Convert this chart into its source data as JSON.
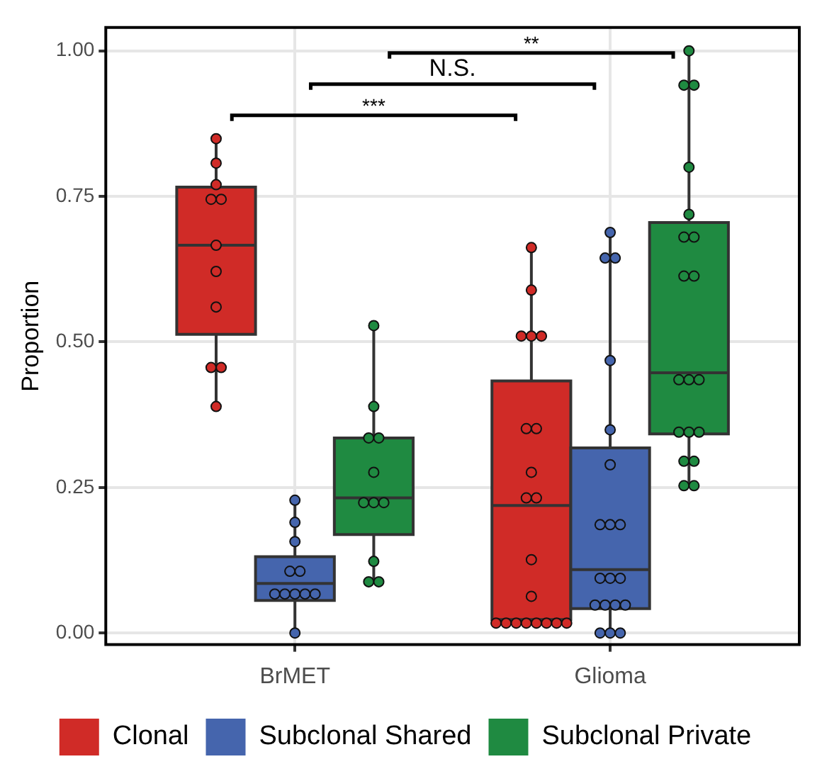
{
  "chart_data": {
    "type": "box",
    "ylabel": "Proportion",
    "categories": [
      "BrMET",
      "Glioma"
    ],
    "ylim": [
      -0.02,
      1.04
    ],
    "yticks": [
      {
        "value": 0,
        "label": "0.00"
      },
      {
        "value": 0.25,
        "label": "0.25"
      },
      {
        "value": 0.5,
        "label": "0.50"
      },
      {
        "value": 0.75,
        "label": "0.75"
      },
      {
        "value": 1,
        "label": "1.00"
      }
    ],
    "grid": true,
    "legend": "bottom",
    "marker": "circle",
    "annotations": [
      "***",
      "N.S.",
      "**"
    ],
    "series": [
      {
        "name": "Clonal",
        "color": "#d02b27",
        "boxes": [
          {
            "low": 0.39,
            "q1": 0.513,
            "median": 0.666,
            "q3": 0.766,
            "high": 0.85
          },
          {
            "low": 0.017,
            "q1": 0.023,
            "median": 0.219,
            "q3": 0.433,
            "high": 0.662
          }
        ]
      },
      {
        "name": "Subclonal Shared",
        "color": "#4565ad",
        "boxes": [
          {
            "low": 0,
            "q1": 0.056,
            "median": 0.085,
            "q3": 0.131,
            "high": 0.228
          },
          {
            "low": 0,
            "q1": 0.042,
            "median": 0.109,
            "q3": 0.318,
            "high": 0.688
          }
        ]
      },
      {
        "name": "Subclonal Private",
        "color": "#1f8a41",
        "boxes": [
          {
            "low": 0.088,
            "q1": 0.169,
            "median": 0.232,
            "q3": 0.335,
            "high": 0.528
          },
          {
            "low": 0.253,
            "q1": 0.342,
            "median": 0.447,
            "q3": 0.705,
            "high": 1.0
          }
        ]
      },
      {
        "type": "scatter",
        "color": "#d02b27",
        "x": [
          "BrMET",
          "BrMET",
          "BrMET",
          "BrMET",
          "BrMET",
          "BrMET",
          "BrMET",
          "BrMET",
          "BrMET",
          "BrMET",
          "BrMET",
          "Glioma",
          "Glioma",
          "Glioma",
          "Glioma",
          "Glioma",
          "Glioma",
          "Glioma",
          "Glioma",
          "Glioma",
          "Glioma",
          "Glioma",
          "Glioma",
          "Glioma",
          "Glioma",
          "Glioma",
          "Glioma",
          "Glioma",
          "Glioma",
          "Glioma",
          "Glioma"
        ],
        "values": [
          0.849,
          0.807,
          0.77,
          0.745,
          0.745,
          0.666,
          0.621,
          0.56,
          0.456,
          0.456,
          0.389,
          0.662,
          0.589,
          0.51,
          0.51,
          0.51,
          0.351,
          0.351,
          0.276,
          0.232,
          0.232,
          0.126,
          0.063,
          0.017,
          0.017,
          0.017,
          0.017,
          0.017,
          0.017,
          0.017,
          0.017
        ]
      },
      {
        "type": "scatter",
        "color": "#4565ad",
        "x": [
          "BrMET",
          "BrMET",
          "BrMET",
          "BrMET",
          "BrMET",
          "BrMET",
          "BrMET",
          "BrMET",
          "BrMET",
          "BrMET",
          "BrMET",
          "Glioma",
          "Glioma",
          "Glioma",
          "Glioma",
          "Glioma",
          "Glioma",
          "Glioma",
          "Glioma",
          "Glioma",
          "Glioma",
          "Glioma",
          "Glioma",
          "Glioma",
          "Glioma",
          "Glioma",
          "Glioma",
          "Glioma",
          "Glioma",
          "Glioma"
        ],
        "values": [
          0.228,
          0.19,
          0.157,
          0.106,
          0.106,
          0.067,
          0.067,
          0.067,
          0.067,
          0.067,
          0,
          0.688,
          0.644,
          0.644,
          0.468,
          0.349,
          0.289,
          0.186,
          0.186,
          0.186,
          0.094,
          0.094,
          0.094,
          0.048,
          0.048,
          0.048,
          0.048,
          0,
          0,
          0
        ]
      },
      {
        "type": "scatter",
        "color": "#1f8a41",
        "x": [
          "BrMET",
          "BrMET",
          "BrMET",
          "BrMET",
          "BrMET",
          "BrMET",
          "BrMET",
          "BrMET",
          "BrMET",
          "BrMET",
          "BrMET",
          "Glioma",
          "Glioma",
          "Glioma",
          "Glioma",
          "Glioma",
          "Glioma",
          "Glioma",
          "Glioma",
          "Glioma",
          "Glioma",
          "Glioma",
          "Glioma",
          "Glioma",
          "Glioma",
          "Glioma",
          "Glioma",
          "Glioma",
          "Glioma",
          "Glioma"
        ],
        "values": [
          0.528,
          0.389,
          0.335,
          0.335,
          0.276,
          0.224,
          0.224,
          0.224,
          0.123,
          0.088,
          0.088,
          1.0,
          0.941,
          0.941,
          0.8,
          0.719,
          0.68,
          0.68,
          0.613,
          0.613,
          0.435,
          0.435,
          0.435,
          0.345,
          0.345,
          0.345,
          0.295,
          0.295,
          0.253,
          0.253
        ]
      }
    ]
  }
}
